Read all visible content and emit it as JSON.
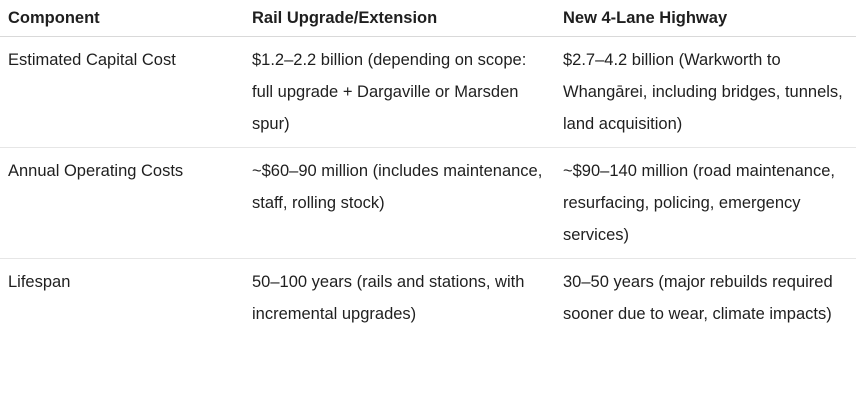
{
  "table": {
    "headers": [
      "Component",
      "Rail Upgrade/Extension",
      "New 4-Lane Highway"
    ],
    "rows": [
      [
        "Estimated Capital Cost",
        "$1.2–2.2 billion (depending on scope: full upgrade + Dargaville or Marsden spur)",
        "$2.7–4.2 billion (Warkworth to Whangārei, including bridges, tunnels, land acquisition)"
      ],
      [
        "Annual Operating Costs",
        "~$60–90 million (includes maintenance, staff, rolling stock)",
        "~$90–140 million (road maintenance, resurfacing, policing, emergency services)"
      ],
      [
        "Lifespan",
        "50–100 years (rails and stations, with incremental upgrades)",
        "30–50 years (major rebuilds required sooner due to wear, climate impacts)"
      ]
    ]
  }
}
